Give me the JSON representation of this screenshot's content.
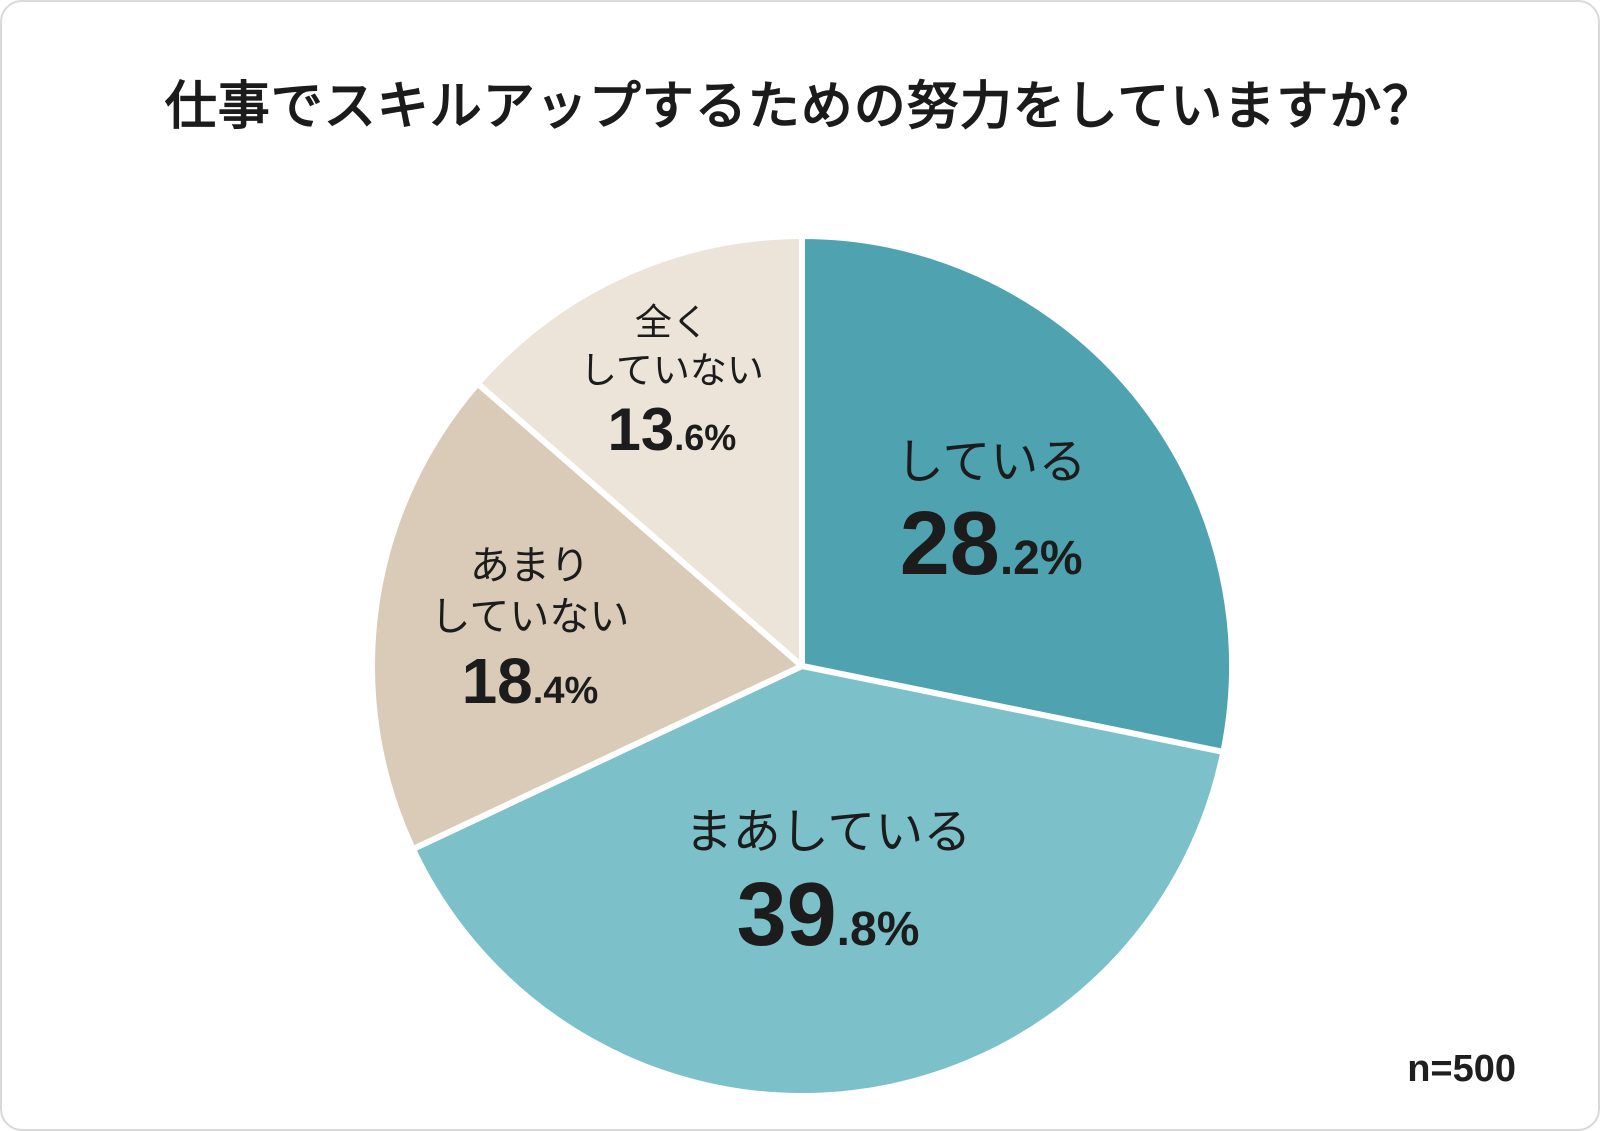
{
  "card": {
    "title": "仕事でスキルアップするための努力をしていますか？",
    "sample_size": "n=500"
  },
  "chart_data": {
    "type": "pie",
    "title": "仕事でスキルアップするための努力をしていますか？",
    "categories": [
      "している",
      "まあしている",
      "あまり\nしていない",
      "全く\nしていない"
    ],
    "values": [
      28.2,
      39.8,
      18.4,
      13.6
    ],
    "unit": "%",
    "colors": [
      "#4fa3b1",
      "#7cc0ca",
      "#d9cbb7",
      "#ece4d8"
    ],
    "start_angle_deg": 0,
    "direction": "clockwise",
    "separator_color": "#ffffff",
    "legend": "none",
    "sample_size": "n=500"
  }
}
